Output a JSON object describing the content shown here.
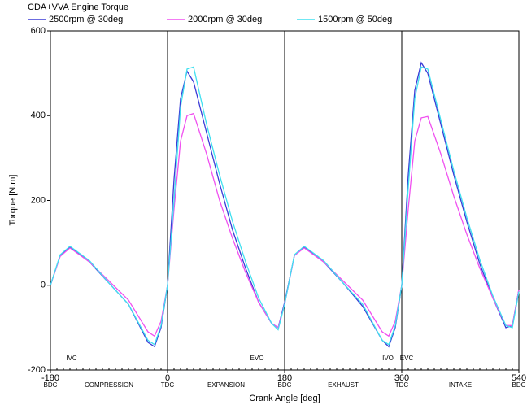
{
  "chart_data": {
    "type": "line",
    "title": "CDA+VVA Engine Torque",
    "x_label": "Crank Angle  [deg]",
    "y_label": "Torque  [N.m]",
    "x": [
      -180,
      -165,
      -150,
      -120,
      -90,
      -60,
      -30,
      -20,
      -10,
      0,
      10,
      20,
      30,
      40,
      60,
      80,
      100,
      120,
      140,
      160,
      170,
      180,
      195,
      210,
      240,
      270,
      300,
      330,
      340,
      350,
      360,
      370,
      380,
      390,
      400,
      420,
      440,
      460,
      480,
      500,
      520,
      530,
      540
    ],
    "series": [
      {
        "name": "2500rpm @ 30deg",
        "color": "#3b3bd6",
        "values": [
          0,
          70,
          90,
          55,
          5,
          -45,
          -135,
          -145,
          -100,
          0,
          250,
          440,
          505,
          480,
          360,
          240,
          130,
          40,
          -40,
          -90,
          -100,
          -40,
          70,
          90,
          55,
          5,
          -50,
          -130,
          -145,
          -100,
          0,
          260,
          460,
          525,
          500,
          380,
          260,
          150,
          50,
          -30,
          -100,
          -95,
          -10
        ]
      },
      {
        "name": "2000rpm @ 30deg",
        "color": "#f050f0",
        "values": [
          0,
          68,
          88,
          55,
          10,
          -35,
          -110,
          -120,
          -85,
          0,
          180,
          340,
          400,
          405,
          310,
          200,
          110,
          30,
          -40,
          -90,
          -100,
          -45,
          70,
          88,
          55,
          10,
          -35,
          -110,
          -120,
          -85,
          0,
          180,
          340,
          395,
          398,
          310,
          210,
          120,
          40,
          -30,
          -95,
          -95,
          -10
        ]
      },
      {
        "name": "1500rpm @ 50deg",
        "color": "#40e0f0",
        "values": [
          0,
          72,
          92,
          58,
          5,
          -45,
          -130,
          -140,
          -95,
          0,
          200,
          420,
          510,
          515,
          380,
          260,
          150,
          55,
          -30,
          -90,
          -105,
          -45,
          72,
          92,
          58,
          5,
          -45,
          -130,
          -140,
          -95,
          0,
          230,
          440,
          515,
          510,
          390,
          270,
          160,
          60,
          -25,
          -95,
          -100,
          -15
        ]
      }
    ],
    "xlim": [
      -180,
      540
    ],
    "xticks": [
      -180,
      0,
      180,
      360,
      540
    ],
    "x_tick_sublabels": [
      "BDC",
      "TDC",
      "BDC",
      "TDC",
      "BDC"
    ],
    "ylim": [
      -200,
      600
    ],
    "yticks": [
      -200,
      0,
      200,
      400,
      600
    ],
    "grid": "x",
    "phase_labels": [
      "COMPRESSION",
      "EXPANSION",
      "EXHAUST",
      "INTAKE"
    ],
    "event_labels": [
      "IVC",
      "EVO",
      "IVO",
      "EVC"
    ],
    "legend": "top"
  }
}
